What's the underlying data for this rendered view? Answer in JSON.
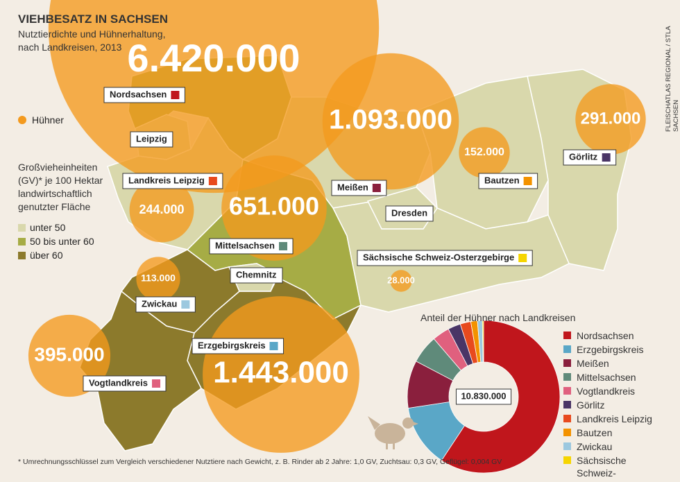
{
  "title": "VIEHBESATZ IN SACHSEN",
  "subtitle": "Nutztierdichte und Hühnerhaltung, nach Landkreisen, 2013",
  "source": "FLEISCHATLAS REGIONAL / STLA SACHSEN",
  "bubble_legend": {
    "label": "Hühner",
    "color": "#f39a1e"
  },
  "density_legend": {
    "title": "Großvieheinheiten (GV)* je 100 Hektar landwirtschaftlich genutzter Fläche",
    "classes": [
      {
        "label": "unter 50",
        "color": "#d9d8ac"
      },
      {
        "label": "50 bis unter 60",
        "color": "#a6ac45"
      },
      {
        "label": "über 60",
        "color": "#8c7a2c"
      }
    ]
  },
  "regions": [
    {
      "name": "Nordsachsen",
      "chickens": 6420000,
      "chickens_label": "6.420.000",
      "density": "50 bis unter 60",
      "color": "#c0161c"
    },
    {
      "name": "Erzgebirgskreis",
      "chickens": 1443000,
      "chickens_label": "1.443.000",
      "density": "über 60",
      "color": "#5aa7c7"
    },
    {
      "name": "Meißen",
      "chickens": 1093000,
      "chickens_label": "1.093.000",
      "density": "unter 50",
      "color": "#8a1f3d"
    },
    {
      "name": "Mittelsachsen",
      "chickens": 651000,
      "chickens_label": "651.000",
      "density": "50 bis unter 60",
      "color": "#5f8a7a"
    },
    {
      "name": "Vogtlandkreis",
      "chickens": 395000,
      "chickens_label": "395.000",
      "density": "über 60",
      "color": "#e0607e"
    },
    {
      "name": "Görlitz",
      "chickens": 291000,
      "chickens_label": "291.000",
      "density": "unter 50",
      "color": "#4a3566"
    },
    {
      "name": "Landkreis Leipzig",
      "chickens": 244000,
      "chickens_label": "244.000",
      "density": "unter 50",
      "color": "#e84a1e"
    },
    {
      "name": "Bautzen",
      "chickens": 152000,
      "chickens_label": "152.000",
      "density": "unter 50",
      "color": "#f39200"
    },
    {
      "name": "Zwickau",
      "chickens": 113000,
      "chickens_label": "113.000",
      "density": "über 60",
      "color": "#9cc8df"
    },
    {
      "name": "Sächsische Schweiz-Osterzgebirge",
      "chickens": 28000,
      "chickens_label": "28.000",
      "density": "unter 50",
      "color": "#f6d500"
    }
  ],
  "cities": [
    {
      "name": "Leipzig",
      "density": "unter 50"
    },
    {
      "name": "Dresden",
      "density": "unter 50"
    },
    {
      "name": "Chemnitz",
      "density": "unter 50"
    }
  ],
  "donut": {
    "title": "Anteil der Hühner nach Landkreisen",
    "total": 10830000,
    "total_label": "10.830.000"
  },
  "footnote": "* Umrechnungsschlüssel zum Vergleich verschiedener Nutztiere nach Gewicht, z. B. Rinder ab 2 Jahre: 1,0 GV, Zuchtsau: 0,3 GV, Geflügel: 0,004 GV"
}
